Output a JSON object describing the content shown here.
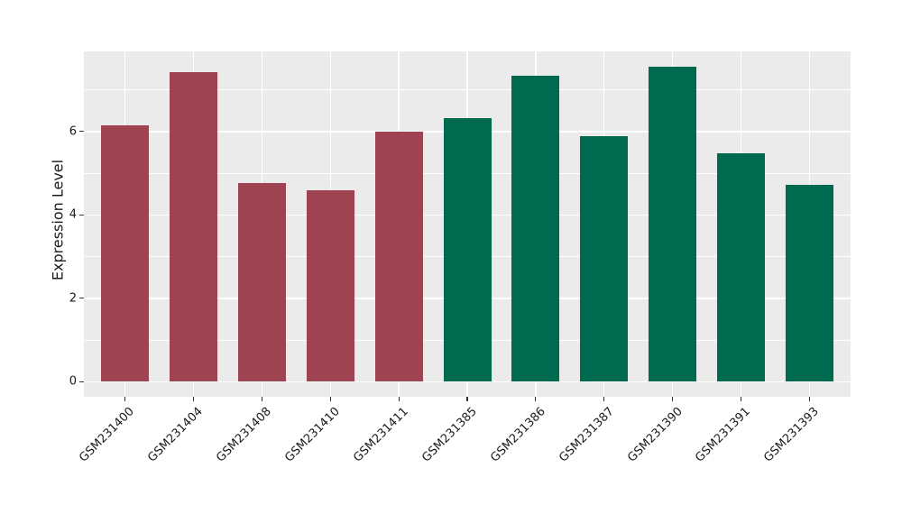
{
  "chart_data": {
    "type": "bar",
    "title": "",
    "xlabel": "",
    "ylabel": "Expression Level",
    "categories": [
      "GSM231400",
      "GSM231404",
      "GSM231408",
      "GSM231410",
      "GSM231411",
      "GSM231385",
      "GSM231386",
      "GSM231387",
      "GSM231390",
      "GSM231391",
      "GSM231393"
    ],
    "values": [
      6.14,
      7.43,
      4.77,
      4.59,
      6.0,
      6.31,
      7.34,
      5.89,
      7.56,
      5.48,
      4.73
    ],
    "groups": [
      "group1",
      "group1",
      "group1",
      "group1",
      "group1",
      "group2",
      "group2",
      "group2",
      "group2",
      "group2",
      "group2"
    ],
    "group_colors": {
      "group1": "#9E4352",
      "group2": "#006A4E"
    },
    "yticks": [
      0,
      2,
      4,
      6
    ],
    "minor_yticks": [
      1,
      3,
      5,
      7
    ],
    "ylim": [
      -0.36,
      7.92
    ],
    "grid": "horizontal major+minor white lines, vertical white line at each category center",
    "legend": "none",
    "panel_background": "#EBEBEB",
    "grid_color": "#FFFFFF",
    "tick_color": "#333333",
    "text_color": "#1a1a1a",
    "x_tick_label_rotation_deg": 45
  }
}
